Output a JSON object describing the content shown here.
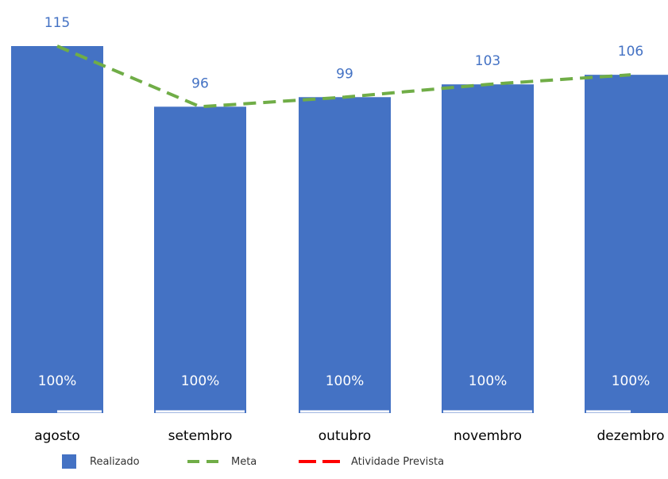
{
  "chart_data": {
    "type": "bar",
    "categories": [
      "agosto",
      "setembro",
      "outubro",
      "novembro",
      "dezembro"
    ],
    "series": [
      {
        "name": "Realizado",
        "type": "bar",
        "color": "#4472C4",
        "values": [
          115,
          96,
          99,
          103,
          106
        ],
        "inner_labels": [
          "100%",
          "100%",
          "100%",
          "100%",
          "100%"
        ]
      },
      {
        "name": "Meta",
        "type": "line",
        "style": "dashed",
        "color": "#70AD47",
        "values": [
          115,
          96,
          99,
          103,
          106
        ]
      },
      {
        "name": "Atividade Prevista",
        "type": "line",
        "style": "dashed",
        "color": "#FF0000",
        "values": [
          0,
          0,
          0,
          0,
          0
        ]
      }
    ],
    "ylim": [
      0,
      115
    ],
    "title": "",
    "xlabel": "",
    "ylabel": "",
    "grid": false,
    "legend_position": "bottom-left",
    "value_label_color": "#4472C4",
    "inner_label_color": "#ffffff",
    "axis_label_color": "#000000"
  }
}
